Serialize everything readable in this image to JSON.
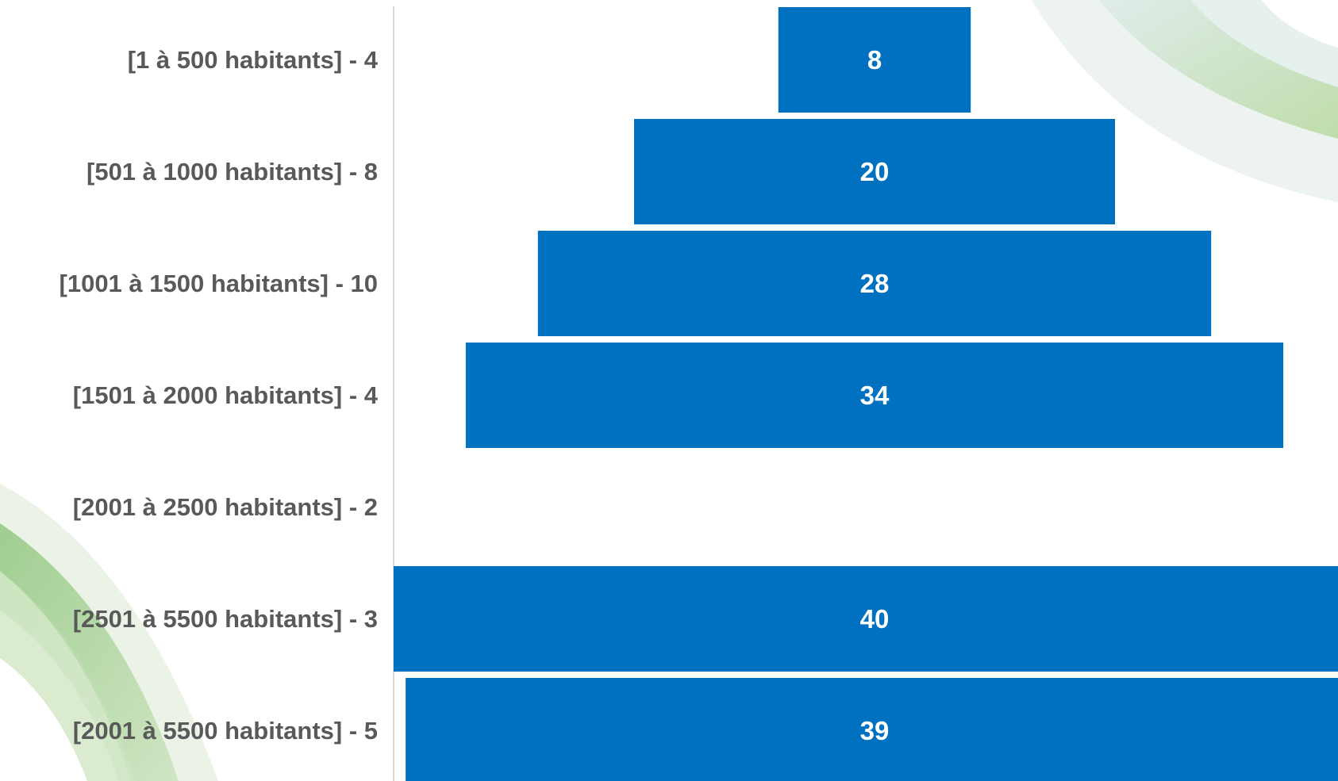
{
  "colors": {
    "bar": "#0070C0",
    "label_text": "#595959",
    "value_text": "#FFFFFF",
    "axis_line": "#D9D9D9",
    "deco_green": "#A9D18E",
    "deco_teal": "#9DC3C1"
  },
  "chart_data": {
    "type": "bar",
    "orientation": "horizontal",
    "layout": "centered-funnel",
    "categories": [
      "[1 à 500 habitants] - 4",
      "[501 à 1000 habitants] - 8",
      "[1001 à 1500 habitants] - 10",
      "[1501 à 2000 habitants] - 4",
      "[2001 à 2500 habitants] - 2",
      "[2501 à 5500 habitants] - 3",
      "[2001 à 5500 habitants] - 5"
    ],
    "values": [
      8,
      20,
      28,
      34,
      null,
      40,
      39
    ],
    "value_labels": [
      "8",
      "20",
      "28",
      "34",
      "",
      "40",
      "39"
    ],
    "title": "",
    "xlabel": "",
    "ylabel": "",
    "xlim": [
      0,
      40
    ],
    "grid": false,
    "legend": "none"
  }
}
